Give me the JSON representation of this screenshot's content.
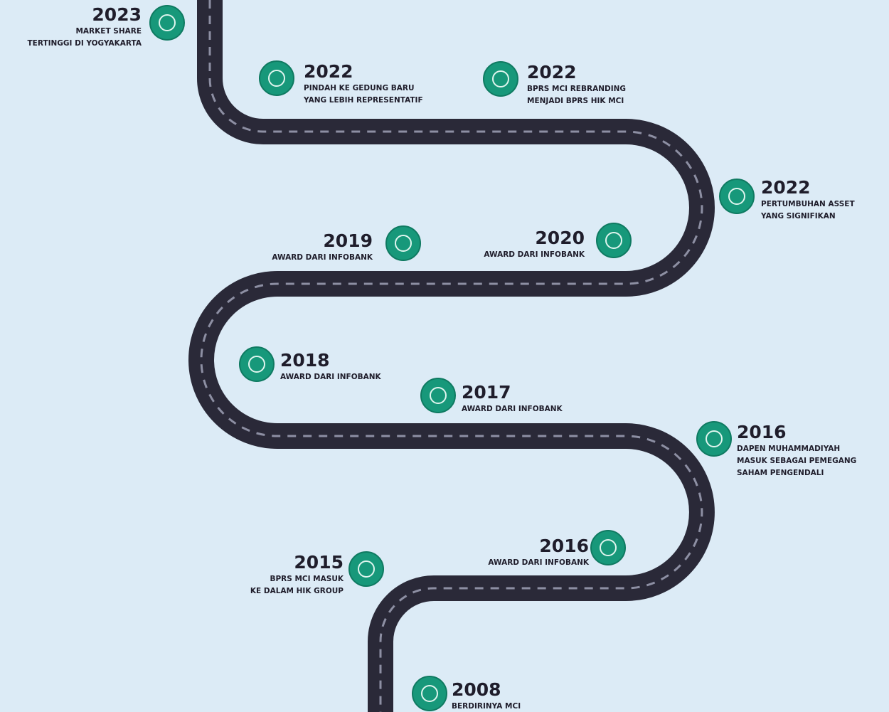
{
  "milestones": [
    {
      "year": "2023",
      "lines": [
        "MARKET SHARE",
        "TERTINGGI DI YOGYAKARTA"
      ]
    },
    {
      "year": "2022",
      "lines": [
        "PINDAH KE GEDUNG BARU",
        "YANG LEBIH REPRESENTATIF"
      ]
    },
    {
      "year": "2022",
      "lines": [
        "BPRS MCI REBRANDING",
        "MENJADI BPRS HIK MCI"
      ]
    },
    {
      "year": "2022",
      "lines": [
        "PERTUMBUHAN ASSET",
        "YANG SIGNIFIKAN"
      ]
    },
    {
      "year": "2019",
      "lines": [
        "AWARD DARI INFOBANK"
      ]
    },
    {
      "year": "2020",
      "lines": [
        "AWARD DARI INFOBANK"
      ]
    },
    {
      "year": "2018",
      "lines": [
        "AWARD DARI INFOBANK"
      ]
    },
    {
      "year": "2017",
      "lines": [
        "AWARD DARI INFOBANK"
      ]
    },
    {
      "year": "2016",
      "lines": [
        "DAPEN MUHAMMADIYAH",
        "MASUK SEBAGAI PEMEGANG",
        "SAHAM PENGENDALI"
      ]
    },
    {
      "year": "2016",
      "lines": [
        "AWARD DARI INFOBANK"
      ]
    },
    {
      "year": "2015",
      "lines": [
        "BPRS MCI MASUK",
        "KE DALAM HIK GROUP"
      ]
    },
    {
      "year": "2008",
      "lines": [
        "BERDIRINYA MCI"
      ]
    }
  ]
}
